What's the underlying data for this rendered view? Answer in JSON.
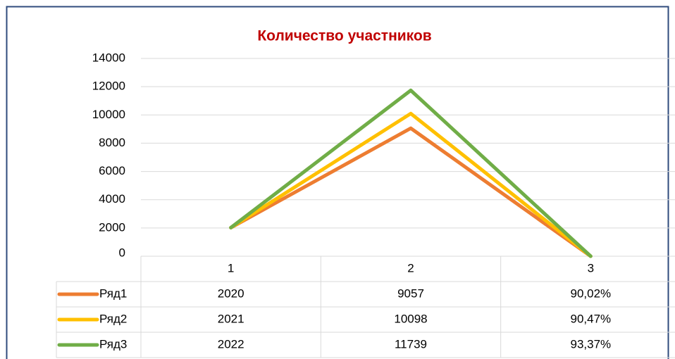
{
  "chart_data": {
    "type": "line",
    "title": "Количество участников",
    "categories": [
      "1",
      "2",
      "3"
    ],
    "series": [
      {
        "name": "Ряд1",
        "color": "#ed7d31",
        "values": [
          2020,
          9057,
          0.9002
        ],
        "value_labels": [
          "2020",
          "9057",
          "90,02%"
        ]
      },
      {
        "name": "Ряд2",
        "color": "#ffc000",
        "values": [
          2021,
          10098,
          0.9047
        ],
        "value_labels": [
          "2021",
          "10098",
          "90,47%"
        ]
      },
      {
        "name": "Ряд3",
        "color": "#70ad47",
        "values": [
          2022,
          11739,
          0.9337
        ],
        "value_labels": [
          "2022",
          "11739",
          "93,37%"
        ]
      }
    ],
    "ylim": [
      0,
      14000
    ],
    "yticks": [
      0,
      2000,
      4000,
      6000,
      8000,
      10000,
      12000,
      14000
    ],
    "grid": true,
    "data_table": true
  }
}
